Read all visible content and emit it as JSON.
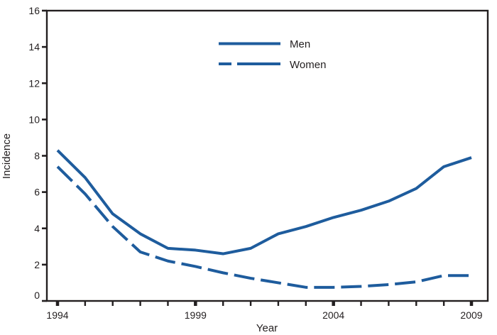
{
  "figure": {
    "background": "#ffffff",
    "axis_color": "#231f20",
    "text_color": "#231f20",
    "line_color": "#1e5c9d"
  },
  "chart_data": {
    "type": "line",
    "title": "",
    "xlabel": "Year",
    "ylabel": "Incidence",
    "x": [
      1994,
      1995,
      1996,
      1997,
      1998,
      1999,
      2000,
      2001,
      2002,
      2003,
      2004,
      2005,
      2006,
      2007,
      2008,
      2009
    ],
    "series": [
      {
        "name": "Men",
        "style": "solid",
        "color": "#1e5c9d",
        "values": [
          8.3,
          6.8,
          4.8,
          3.7,
          2.9,
          2.8,
          2.6,
          2.9,
          3.7,
          4.1,
          4.6,
          5.0,
          5.5,
          6.2,
          7.4,
          7.9
        ]
      },
      {
        "name": "Women",
        "style": "dashed",
        "color": "#1e5c9d",
        "values": [
          7.4,
          5.9,
          4.1,
          2.7,
          2.2,
          1.9,
          1.55,
          1.25,
          1.0,
          0.75,
          0.75,
          0.8,
          0.9,
          1.05,
          1.4,
          1.4
        ]
      }
    ],
    "ylim": [
      0,
      16
    ],
    "yticks": [
      0,
      2,
      4,
      6,
      8,
      10,
      12,
      14,
      16
    ],
    "ytick_labels": [
      "0",
      "2",
      "4",
      "6",
      "8",
      "10",
      "12",
      "14",
      "16"
    ],
    "xtick_labeled": [
      1994,
      1999,
      2004,
      2009
    ],
    "xtick_labels": [
      "1994",
      "1999",
      "2004",
      "2009"
    ],
    "legend_position": "upper-center",
    "grid": false
  }
}
